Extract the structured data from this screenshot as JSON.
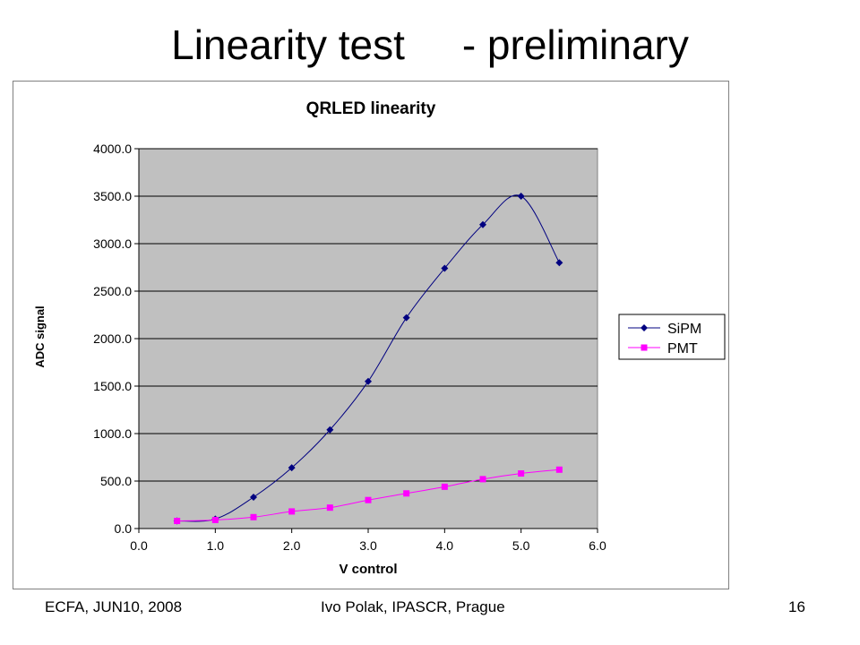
{
  "slide": {
    "title": "Linearity test     - preliminary",
    "footer_left": "ECFA, JUN10, 2008",
    "footer_center": "Ivo Polak, IPASCR, Prague",
    "page_number": "16"
  },
  "chart_data": {
    "type": "line",
    "title": "QRLED linearity",
    "xlabel": "V control",
    "ylabel": "ADC signal",
    "xlim": [
      0,
      6
    ],
    "ylim": [
      0,
      4000
    ],
    "x_ticks": [
      "0.0",
      "1.0",
      "2.0",
      "3.0",
      "4.0",
      "5.0",
      "6.0"
    ],
    "y_ticks": [
      "0.0",
      "500.0",
      "1000.0",
      "1500.0",
      "2000.0",
      "2500.0",
      "3000.0",
      "3500.0",
      "4000.0"
    ],
    "grid": "horizontal",
    "legend_position": "right",
    "plot_background": "#c0c0c0",
    "series": [
      {
        "name": "SiPM",
        "color": "#000080",
        "marker": "diamond",
        "x": [
          0.5,
          1.0,
          1.5,
          2.0,
          2.5,
          3.0,
          3.5,
          4.0,
          4.5,
          5.0,
          5.5
        ],
        "y": [
          80,
          100,
          330,
          640,
          1040,
          1550,
          2220,
          2740,
          3200,
          3500,
          2800
        ]
      },
      {
        "name": "PMT",
        "color": "#ff00ff",
        "marker": "square",
        "x": [
          0.5,
          1.0,
          1.5,
          2.0,
          2.5,
          3.0,
          3.5,
          4.0,
          4.5,
          5.0,
          5.5
        ],
        "y": [
          80,
          90,
          120,
          180,
          220,
          300,
          370,
          440,
          520,
          580,
          620
        ]
      }
    ]
  }
}
